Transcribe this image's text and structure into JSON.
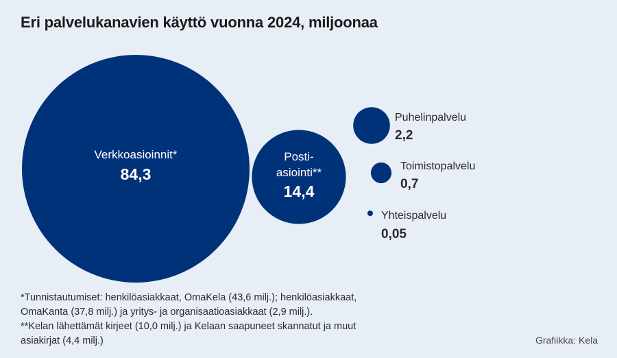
{
  "header": {
    "title": "Eri palvelukanavien käyttö vuonna 2024, miljoonaa"
  },
  "chart_data": {
    "type": "bubble",
    "title": "Eri palvelukanavien käyttö vuonna 2024, miljoonaa",
    "unit": "miljoonaa",
    "color": "#00327a",
    "items": [
      {
        "label": "Verkkoasioinnit*",
        "value": 84.3,
        "value_text": "84,3"
      },
      {
        "label": "Posti-asiointi**",
        "value": 14.4,
        "value_text": "14,4"
      },
      {
        "label": "Puhelinpalvelu",
        "value": 2.2,
        "value_text": "2,2"
      },
      {
        "label": "Toimistopalvelu",
        "value": 0.7,
        "value_text": "0,7"
      },
      {
        "label": "Yhteispalvelu",
        "value": 0.05,
        "value_text": "0,05"
      }
    ]
  },
  "labels": {
    "online": "Verkkoasioinnit*",
    "online_value": "84,3",
    "post_line1": "Posti-",
    "post_line2": "asiointi**",
    "post_value": "14,4",
    "phone": "Puhelinpalvelu",
    "phone_value": "2,2",
    "office": "Toimistopalvelu",
    "office_value": "0,7",
    "shared": "Yhteispalvelu",
    "shared_value": "0,05"
  },
  "footnotes": {
    "line1": "*Tunnistautumiset: henkilöasiakkaat, OmaKela (43,6 milj.); henkilöasiakkaat,",
    "line2": "OmaKanta (37,8 milj.) ja yritys- ja organisaatioasiakkaat (2,9 milj.).",
    "line3": "**Kelan lähettämät kirjeet (10,0 milj.) ja Kelaan saapuneet skannatut ja muut",
    "line4": "asiakirjat (4,4 milj.)"
  },
  "credit": "Grafiikka: Kela"
}
